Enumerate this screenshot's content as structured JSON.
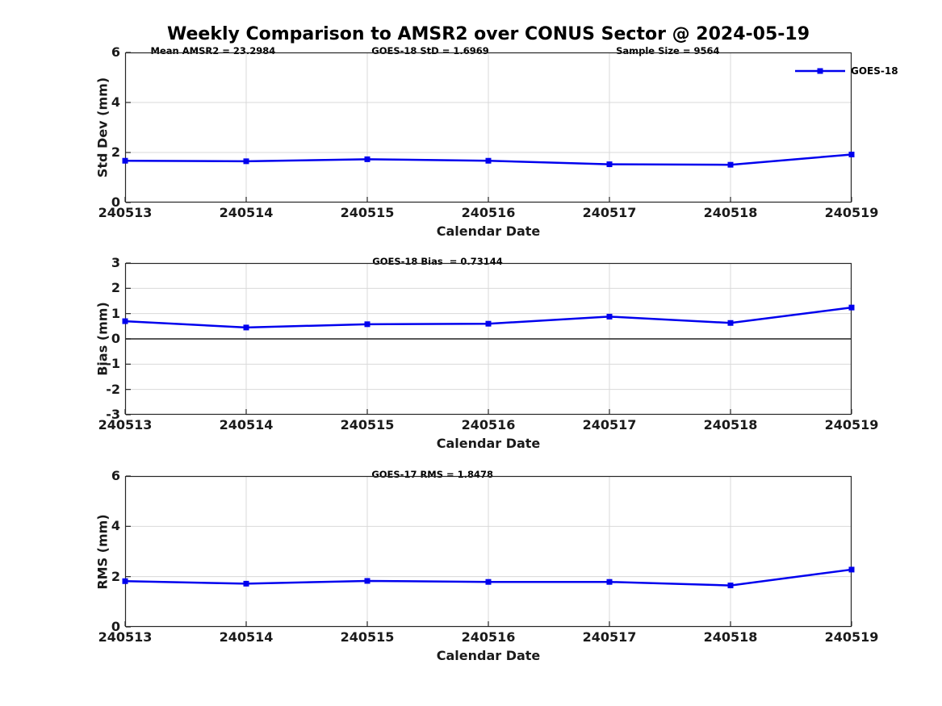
{
  "title": "Weekly Comparison to AMSR2 over CONUS Sector @ 2024-05-19",
  "legend": {
    "label": "GOES-18"
  },
  "colors": {
    "line": "#0000ee",
    "grid": "#d9d9d9",
    "axis": "#262626",
    "tick_text": "#1a1a1a",
    "zero_line": "#404040"
  },
  "chart_data": [
    {
      "type": "line",
      "ylabel": "Std Dev (mm)",
      "xlabel": "Calendar Date",
      "ylim": [
        0,
        6
      ],
      "yticks": [
        0,
        2,
        4,
        6
      ],
      "grid": true,
      "legend_position": "top-right",
      "annotations": [
        "Mean AMSR2 = 23.2984",
        "GOES-18 StD = 1.6969",
        "Sample Size = 9564"
      ],
      "categories": [
        "240513",
        "240514",
        "240515",
        "240516",
        "240517",
        "240518",
        "240519"
      ],
      "series": [
        {
          "name": "GOES-18",
          "marker": "square",
          "values": [
            1.67,
            1.65,
            1.73,
            1.67,
            1.53,
            1.51,
            1.92
          ]
        }
      ]
    },
    {
      "type": "line",
      "ylabel": "Bias (mm)",
      "xlabel": "Calendar Date",
      "ylim": [
        -3,
        3
      ],
      "yticks": [
        3,
        2,
        1,
        0,
        -1,
        -2,
        -3
      ],
      "grid": true,
      "zero_line": true,
      "annotations": [
        "GOES-18 Bias  = 0.73144"
      ],
      "categories": [
        "240513",
        "240514",
        "240515",
        "240516",
        "240517",
        "240518",
        "240519"
      ],
      "series": [
        {
          "name": "GOES-18",
          "marker": "square",
          "values": [
            0.7,
            0.45,
            0.58,
            0.6,
            0.88,
            0.63,
            1.24
          ]
        }
      ]
    },
    {
      "type": "line",
      "ylabel": "RMS (mm)",
      "xlabel": "Calendar Date",
      "ylim": [
        0,
        6
      ],
      "yticks": [
        0,
        2,
        4,
        6
      ],
      "grid": true,
      "annotations": [
        "GOES-17 RMS = 1.8478"
      ],
      "categories": [
        "240513",
        "240514",
        "240515",
        "240516",
        "240517",
        "240518",
        "240519"
      ],
      "series": [
        {
          "name": "GOES-18",
          "marker": "square",
          "values": [
            1.82,
            1.72,
            1.83,
            1.79,
            1.79,
            1.65,
            2.28
          ]
        }
      ]
    }
  ]
}
